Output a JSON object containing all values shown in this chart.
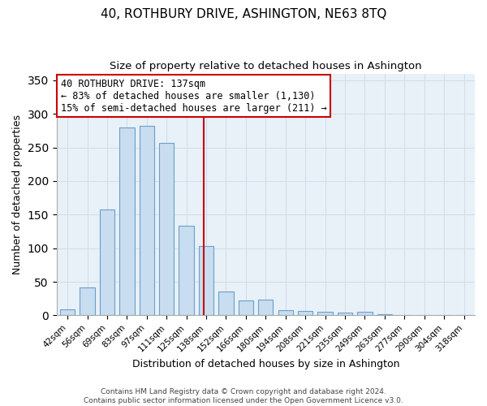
{
  "title": "40, ROTHBURY DRIVE, ASHINGTON, NE63 8TQ",
  "subtitle": "Size of property relative to detached houses in Ashington",
  "xlabel": "Distribution of detached houses by size in Ashington",
  "ylabel": "Number of detached properties",
  "bar_labels": [
    "42sqm",
    "56sqm",
    "69sqm",
    "83sqm",
    "97sqm",
    "111sqm",
    "125sqm",
    "138sqm",
    "152sqm",
    "166sqm",
    "180sqm",
    "194sqm",
    "208sqm",
    "221sqm",
    "235sqm",
    "249sqm",
    "263sqm",
    "277sqm",
    "290sqm",
    "304sqm",
    "318sqm"
  ],
  "bar_heights": [
    9,
    42,
    158,
    280,
    282,
    257,
    133,
    103,
    36,
    22,
    23,
    8,
    7,
    5,
    4,
    5,
    2,
    1,
    1,
    1,
    1
  ],
  "bar_color": "#c8ddf0",
  "bar_edge_color": "#6aa0c8",
  "vline_x_idx": 7,
  "vline_color": "#cc0000",
  "annotation_text": "40 ROTHBURY DRIVE: 137sqm\n← 83% of detached houses are smaller (1,130)\n15% of semi-detached houses are larger (211) →",
  "annotation_box_color": "#ffffff",
  "annotation_box_edge": "#cc0000",
  "footer_text": "Contains HM Land Registry data © Crown copyright and database right 2024.\nContains public sector information licensed under the Open Government Licence v3.0.",
  "plot_bg_color": "#e8f0f8",
  "ylim": [
    0,
    360
  ],
  "title_fontsize": 11,
  "subtitle_fontsize": 9.5,
  "xlabel_fontsize": 9,
  "ylabel_fontsize": 9,
  "tick_fontsize": 7.5,
  "annotation_fontsize": 8.5,
  "footer_fontsize": 6.5
}
